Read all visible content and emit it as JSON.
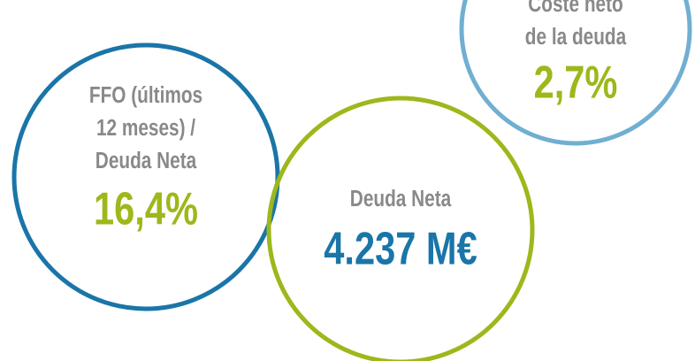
{
  "circles": [
    {
      "label": [
        "FFO (últimos",
        "12 meses) /",
        "Deuda Neta"
      ],
      "value": "16,4%"
    },
    {
      "label": [
        "Deuda Neta"
      ],
      "value": "4.237 M€"
    },
    {
      "label": [
        "Coste neto",
        "de la deuda"
      ],
      "value": "2,7%"
    }
  ]
}
